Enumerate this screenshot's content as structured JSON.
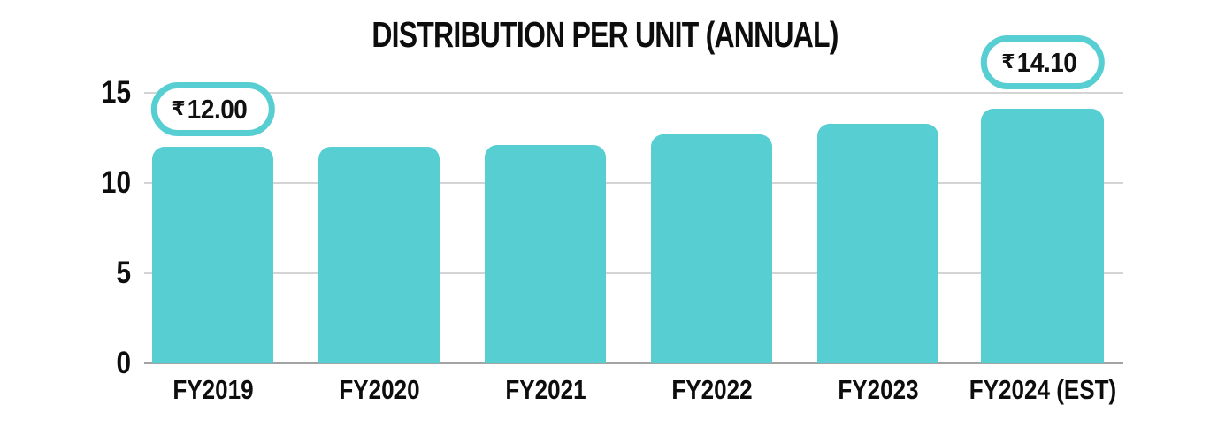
{
  "chart_data": {
    "type": "bar",
    "title": "DISTRIBUTION PER UNIT (ANNUAL)",
    "categories": [
      "FY2019",
      "FY2020",
      "FY2021",
      "FY2022",
      "FY2023",
      "FY2024 (EST)"
    ],
    "values": [
      12.0,
      12.0,
      12.1,
      12.7,
      13.3,
      14.1
    ],
    "currency_symbol": "₹",
    "ylim": [
      0,
      15
    ],
    "yticks": [
      0,
      5,
      10,
      15
    ],
    "grid": "horizontal",
    "legend": "none",
    "annotations": [
      {
        "category": "FY2019",
        "currency": "₹",
        "value_label": "12.00"
      },
      {
        "category": "FY2024 (EST)",
        "currency": "₹",
        "value_label": "14.10"
      }
    ],
    "colors": {
      "bar": "#57CED2",
      "callout_border": "#57CED2",
      "gridline": "#d4d4d4",
      "axis_line": "#a3a3a3",
      "text": "#111111",
      "background": "#ffffff"
    }
  }
}
